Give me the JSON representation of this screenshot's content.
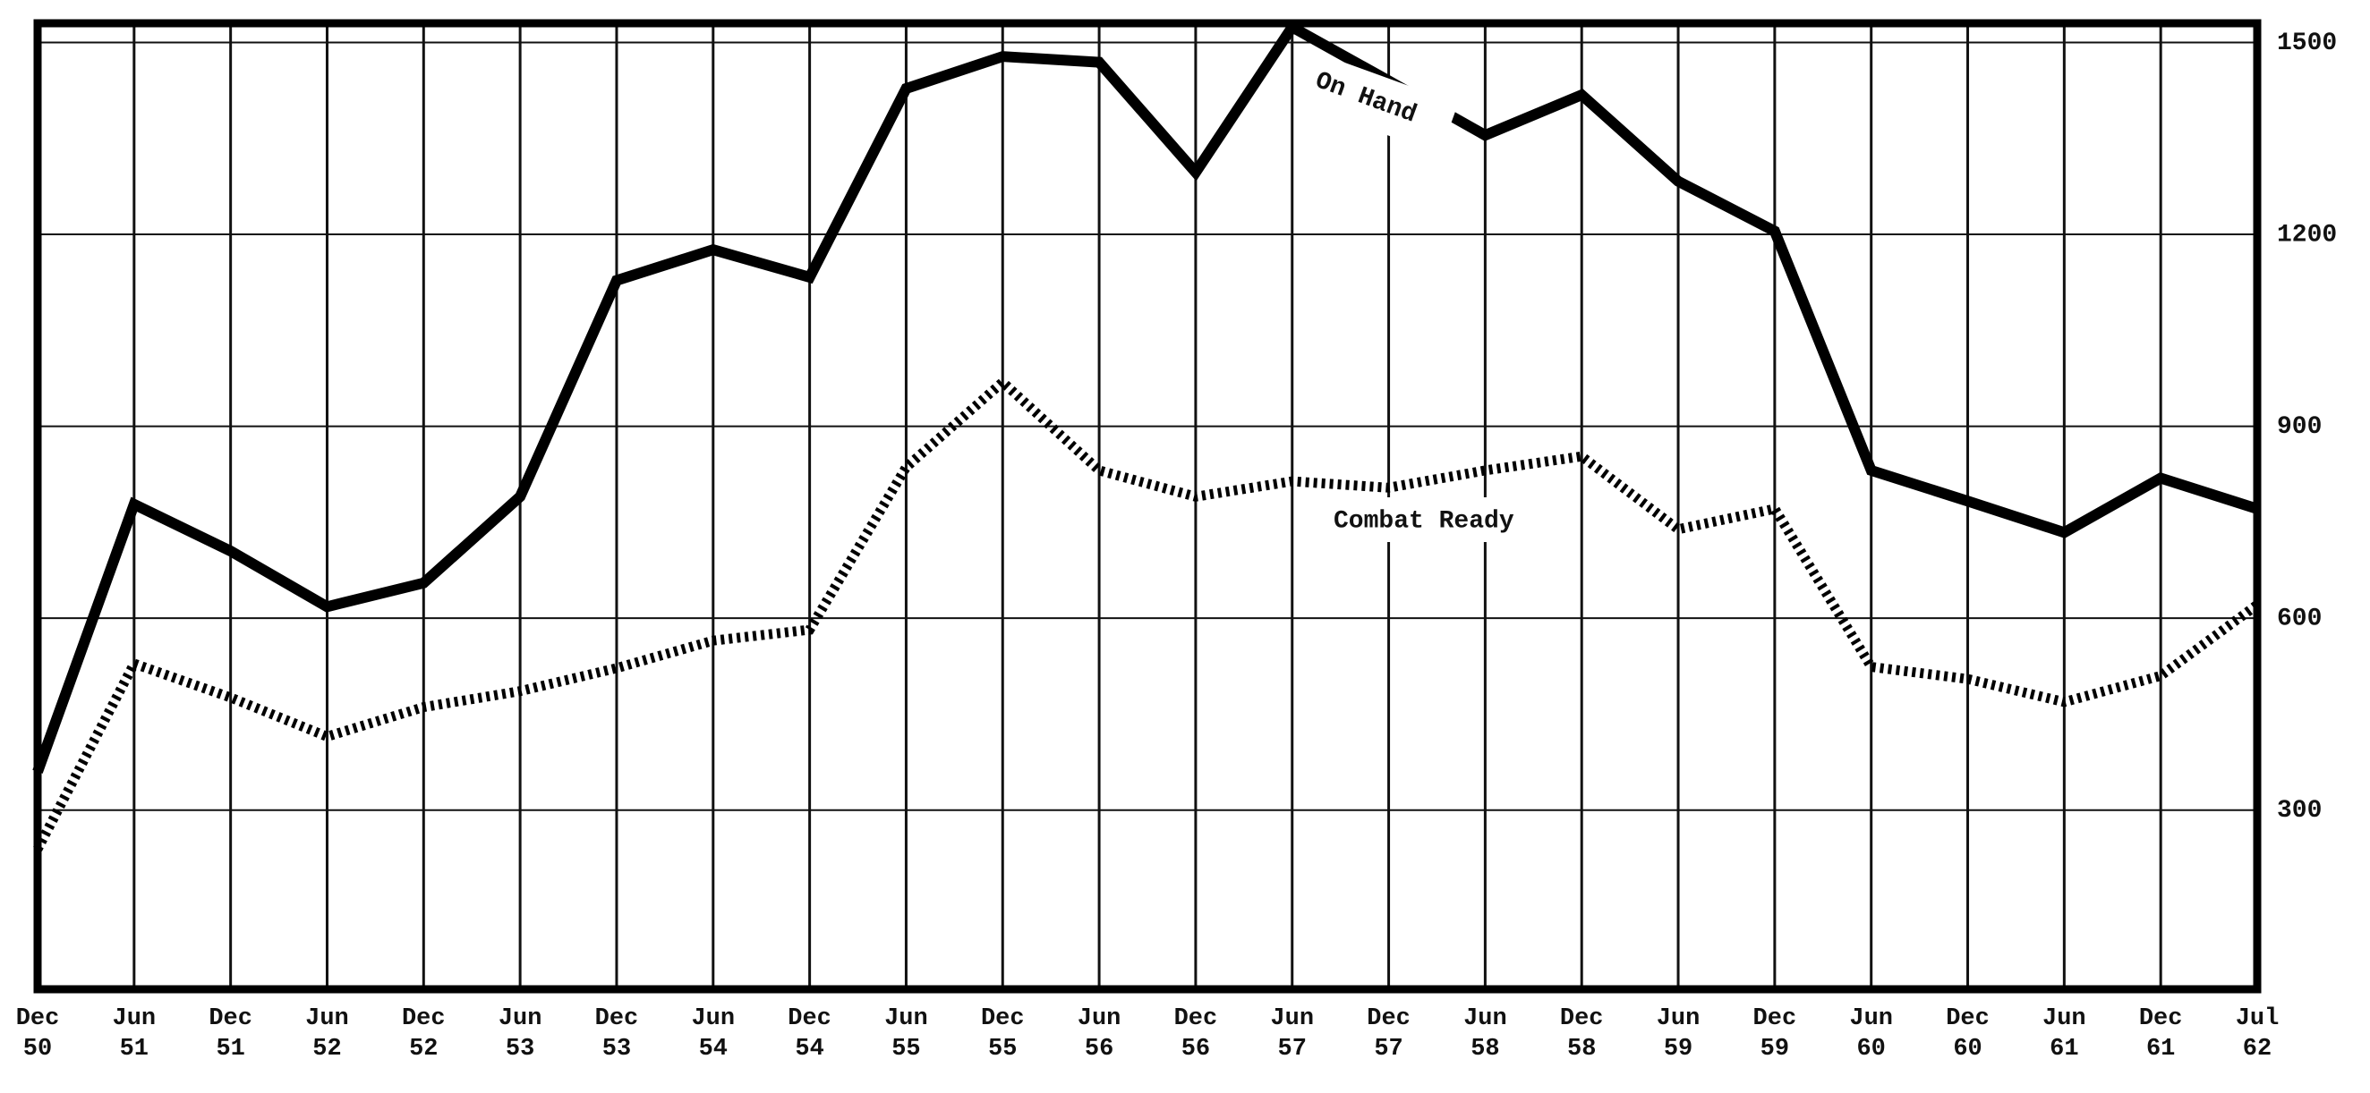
{
  "chart_data": {
    "type": "line",
    "categories": [
      "Dec 50",
      "Jun 51",
      "Dec 51",
      "Jun 52",
      "Dec 52",
      "Jun 53",
      "Dec 53",
      "Jun 54",
      "Dec 54",
      "Jun 55",
      "Dec 55",
      "Jun 56",
      "Dec 56",
      "Jun 57",
      "Dec 57",
      "Jun 58",
      "Dec 58",
      "Jun 59",
      "Dec 59",
      "Jun 60",
      "Dec 60",
      "Jun 61",
      "Dec 61",
      "Jul 62"
    ],
    "series": [
      {
        "name": "On Hand",
        "color": "#000000",
        "style": "solid",
        "values": [
          360,
          778,
          705,
          618,
          655,
          790,
          1128,
          1176,
          1133,
          1428,
          1478,
          1469,
          1297,
          1524,
          1440,
          1355,
          1418,
          1283,
          1205,
          831,
          783,
          734,
          819,
          771
        ]
      },
      {
        "name": "Combat Ready",
        "color": "#000000",
        "style": "dotted",
        "values": [
          239,
          529,
          476,
          415,
          461,
          486,
          522,
          565,
          582,
          836,
          969,
          831,
          790,
          814,
          804,
          831,
          853,
          739,
          771,
          524,
          505,
          469,
          510,
          621
        ]
      }
    ],
    "ylim": [
      20,
      1530
    ],
    "yticks": [
      300,
      600,
      900,
      1200,
      1500
    ],
    "grid": true,
    "y_axis_side": "right"
  }
}
